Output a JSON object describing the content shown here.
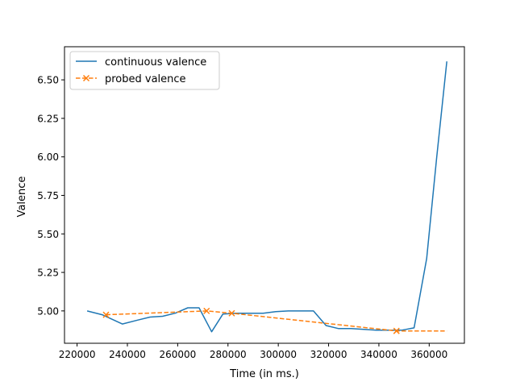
{
  "chart_data": {
    "type": "line",
    "title": "",
    "xlabel": "Time (in ms.)",
    "ylabel": "Valence",
    "xlim": [
      215000,
      374000
    ],
    "ylim": [
      4.79,
      6.715
    ],
    "x_ticks": [
      220000,
      240000,
      260000,
      280000,
      300000,
      320000,
      340000,
      360000
    ],
    "x_tick_labels": [
      "220000",
      "240000",
      "260000",
      "280000",
      "300000",
      "320000",
      "340000",
      "360000"
    ],
    "y_ticks": [
      5.0,
      5.25,
      5.5,
      5.75,
      6.0,
      6.25,
      6.5
    ],
    "y_tick_labels": [
      "5.00",
      "5.25",
      "5.50",
      "5.75",
      "6.00",
      "6.25",
      "6.50"
    ],
    "grid": false,
    "legend_position": "upper-left",
    "series": [
      {
        "name": "continuous valence",
        "color": "#1f77b4",
        "style": "solid",
        "marker": "none",
        "x": [
          224000,
          230000,
          238000,
          244000,
          249000,
          254000,
          259000,
          264000,
          268500,
          273500,
          278000,
          283000,
          289000,
          294000,
          299000,
          304000,
          309000,
          314000,
          319000,
          324000,
          329000,
          334000,
          339000,
          344000,
          349000,
          354000,
          359000,
          363000,
          367000
        ],
        "y": [
          5.0,
          4.975,
          4.915,
          4.94,
          4.96,
          4.965,
          4.985,
          5.02,
          5.02,
          4.865,
          4.98,
          4.985,
          4.985,
          4.985,
          4.995,
          5.0,
          5.0,
          5.0,
          4.905,
          4.885,
          4.885,
          4.88,
          4.875,
          4.875,
          4.875,
          4.89,
          5.34,
          6.0,
          6.62
        ]
      },
      {
        "name": "probed valence",
        "color": "#ff7f0e",
        "style": "dashed",
        "marker": "x",
        "x": [
          231500,
          271500,
          281500,
          347000,
          367000
        ],
        "y": [
          4.975,
          5.0,
          4.985,
          4.87,
          4.87
        ],
        "marker_indices": [
          0,
          1,
          2,
          3
        ]
      }
    ]
  }
}
